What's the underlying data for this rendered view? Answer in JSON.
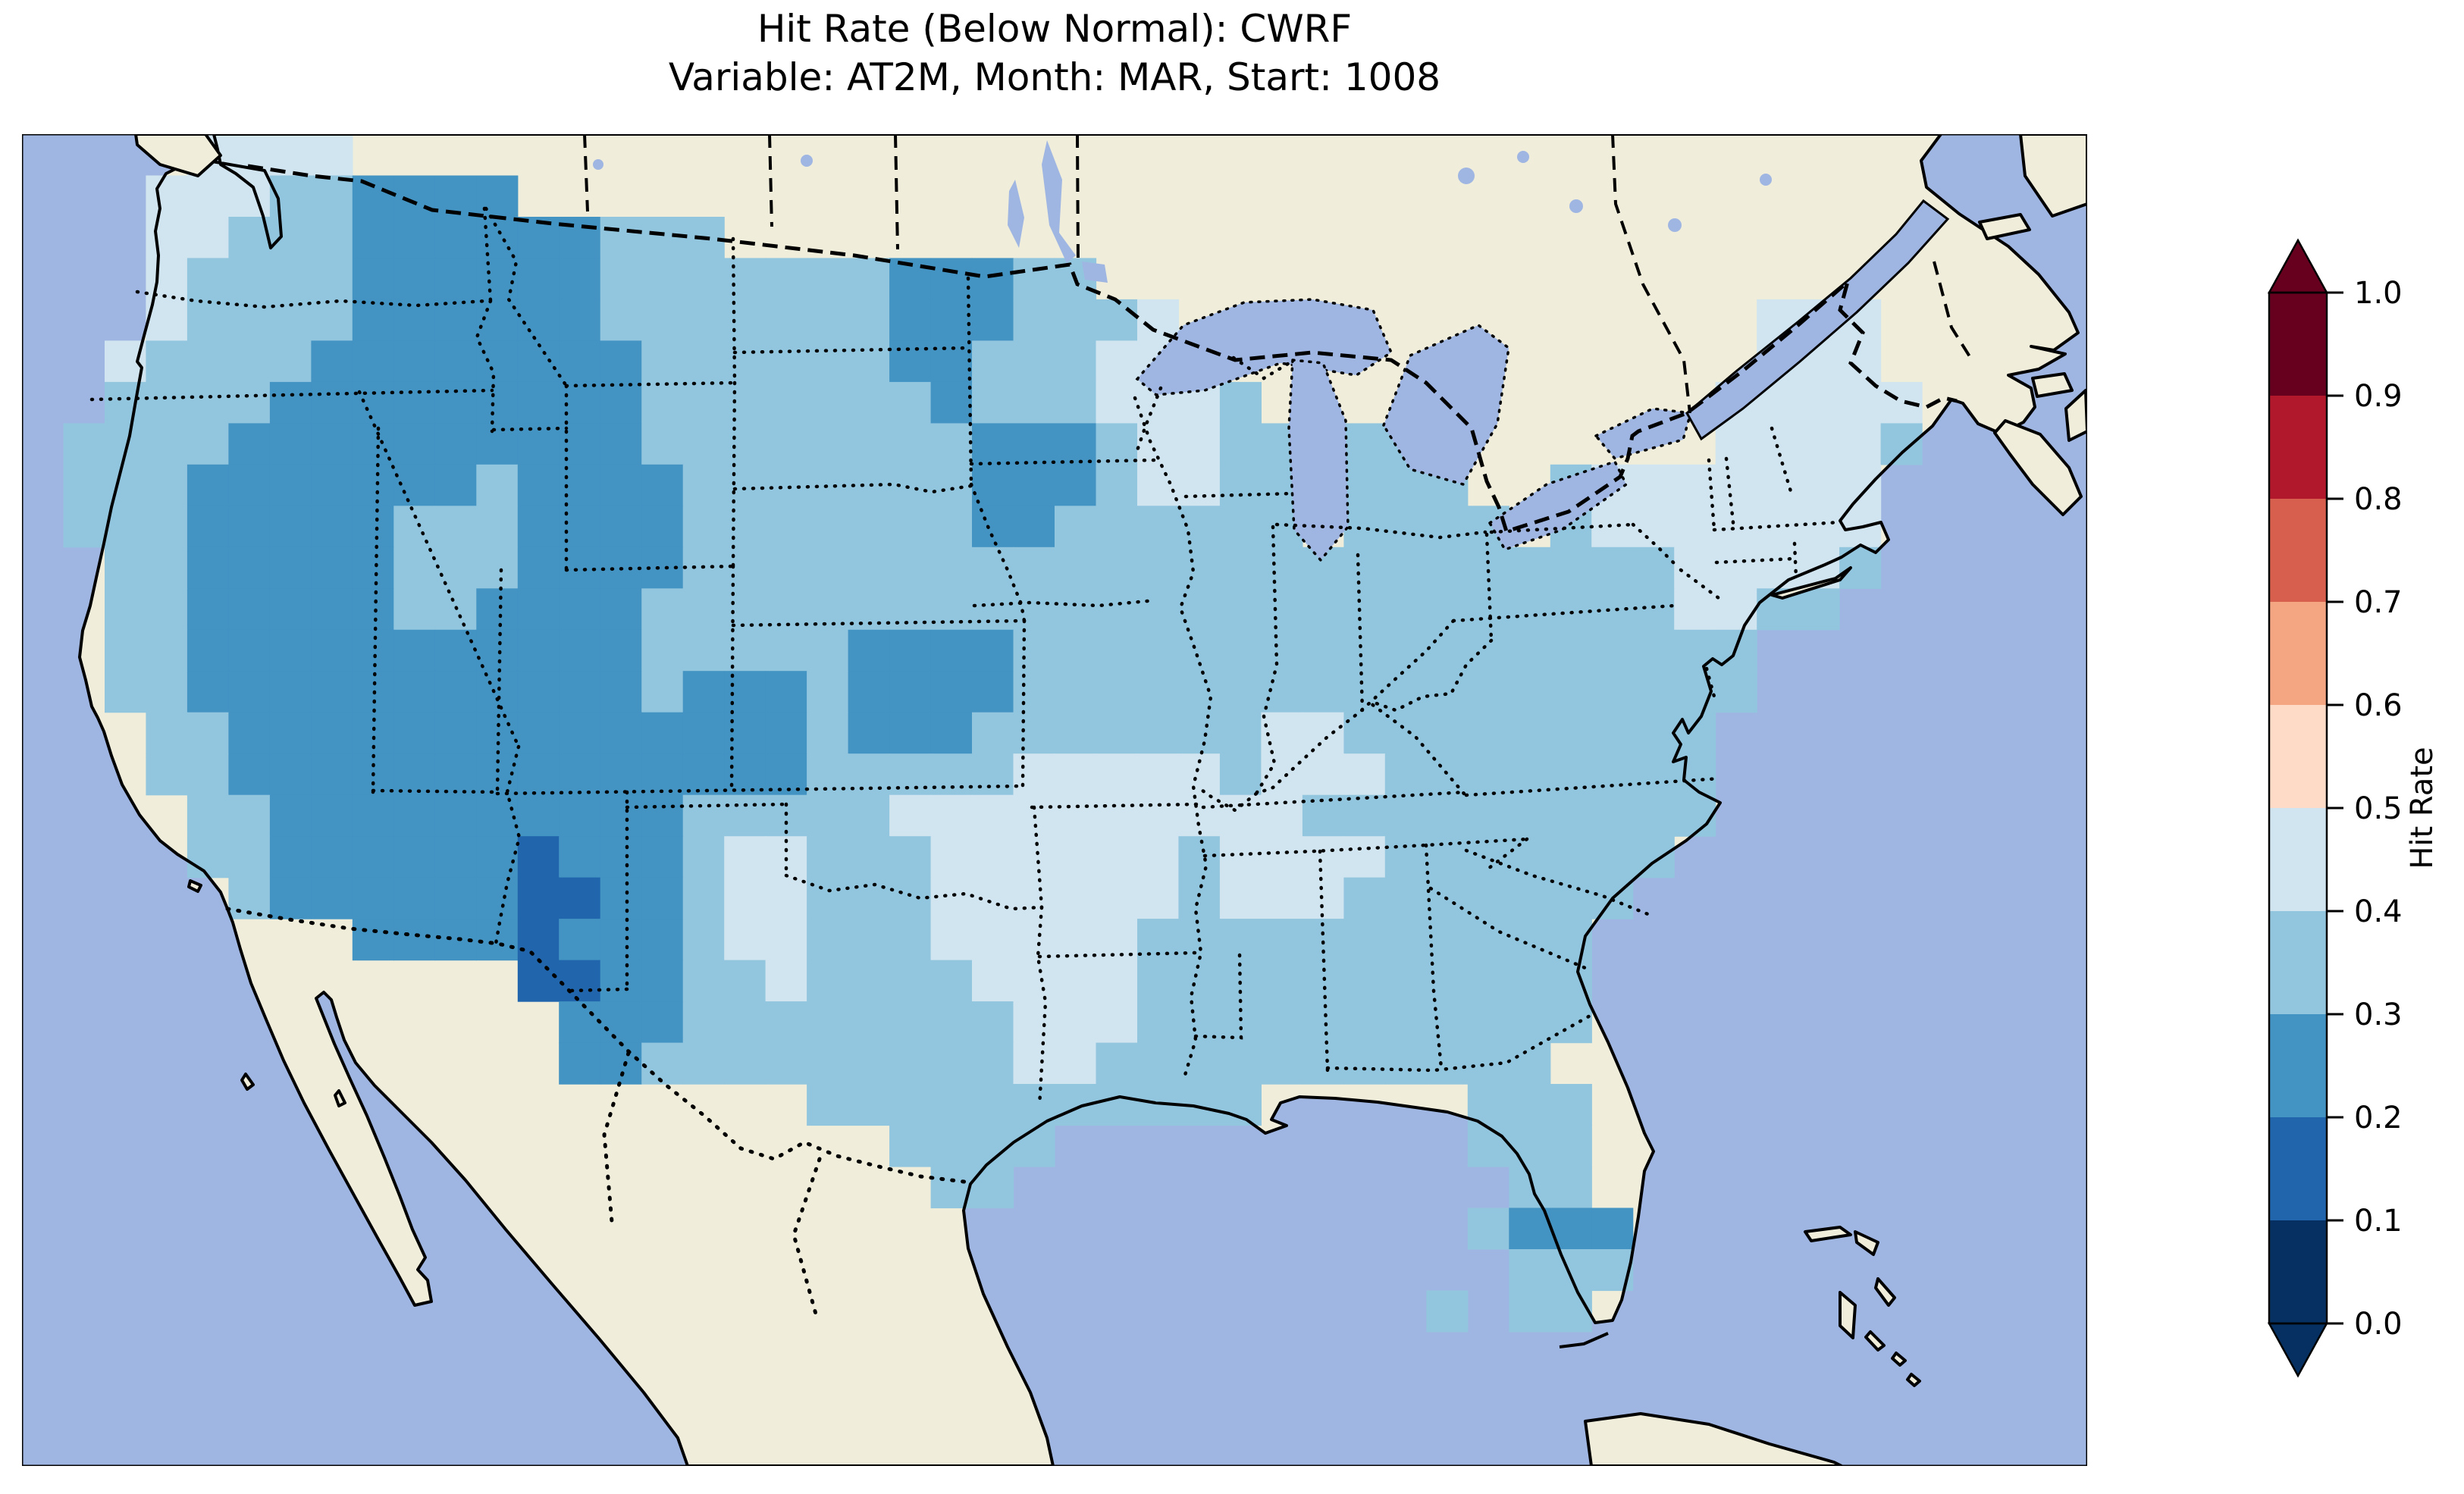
{
  "title": {
    "line1": "Hit Rate (Below Normal): CWRF",
    "line2": "Variable: AT2M, Month: MAR, Start: 1008"
  },
  "colorbar": {
    "label": "Hit Rate",
    "ticks": [
      "1.0",
      "0.9",
      "0.8",
      "0.7",
      "0.6",
      "0.5",
      "0.4",
      "0.3",
      "0.2",
      "0.1",
      "0.0"
    ],
    "segment_colors_low_to_high": [
      "#053061",
      "#2166ac",
      "#4393c3",
      "#92c5de",
      "#d1e5f0",
      "#fddbc7",
      "#f4a582",
      "#d6604d",
      "#b2182b",
      "#67001f"
    ],
    "extend_under_color": "#053061",
    "extend_over_color": "#67001f"
  },
  "map": {
    "ocean_color": "#a0b6e2",
    "land_color": "#f0eeda",
    "lake_color": "#a0b6e2",
    "coastline_color": "#000000",
    "border_color": "#000000"
  },
  "chart_data": {
    "type": "heatmap",
    "title": "Hit Rate (Below Normal): CWRF",
    "subtitle": "Variable: AT2M, Month: MAR, Start: 1008",
    "metric": "Hit Rate (Below Normal)",
    "model": "CWRF",
    "variable": "AT2M",
    "month": "MAR",
    "start": "1008",
    "colorbar_label": "Hit Rate",
    "colorbar_range": [
      0.0,
      1.0
    ],
    "colorbar_tick_step": 0.1,
    "legend_position": "right",
    "value_bins": {
      "1": {
        "range": "0.1-0.2",
        "color": "#2166ac"
      },
      "2": {
        "range": "0.2-0.3",
        "color": "#4393c3"
      },
      "3": {
        "range": "0.3-0.4",
        "color": "#92c5de"
      },
      "4": {
        "range": "0.4-0.5",
        "color": "#d1e5f0"
      }
    },
    "grid": {
      "cell_size": 54.48,
      "palette": {
        "1": "#2166ac",
        "2": "#4393c3",
        "3": "#92c5de",
        "4": "#d1e5f0"
      },
      "rows": [
        "....4444..........................................",
        "...444332222......................................",
        "...44333222222333.................................",
        "...43333222222333333322233........................",
        "...4333322222233333332223334..............444.....",
        "..43333222222223333332233344..............444.....",
        "..3333222222222333333323334443...........44444....",
        ".333322222222223333333322234433.33.......44443....",
        ".333222222232222333333322234433.333..34444444.....",
        ".333222223332222333333322333333.3333.34444444.....",
        "..3322222333222233333333333333333333333344443.....",
        "..332222233222233333333333333333333333334433......",
        "..3322222222222333332222333333333333333333........",
        "..3322222222222322232222333333333333333333........",
        "...33222222222222223222333333344333333333.........",
        "...33222222222222223333344444344433333333.........",
        "....3322222222223333344444444443333333333.........",
        "....332222221222344333444444344443333333..........",
        ".....3222222112234433344444434443333333...........",
        "........222212223443334444433333333333............",
        "............11223343333444433333333333............",
        ".............2223333333344433333333333............",
        ".............223333333334433333333333.............",
        "...................33333333333.....333............",
        ".....................3333..........333............",
        "......................33............33............",
        "...................................3222...........",
        "....................................333...........",
        "..................................3.33............",
        "..................................................",
        "..................................................",
        "..................................................",
        ".................................................."
      ]
    }
  }
}
